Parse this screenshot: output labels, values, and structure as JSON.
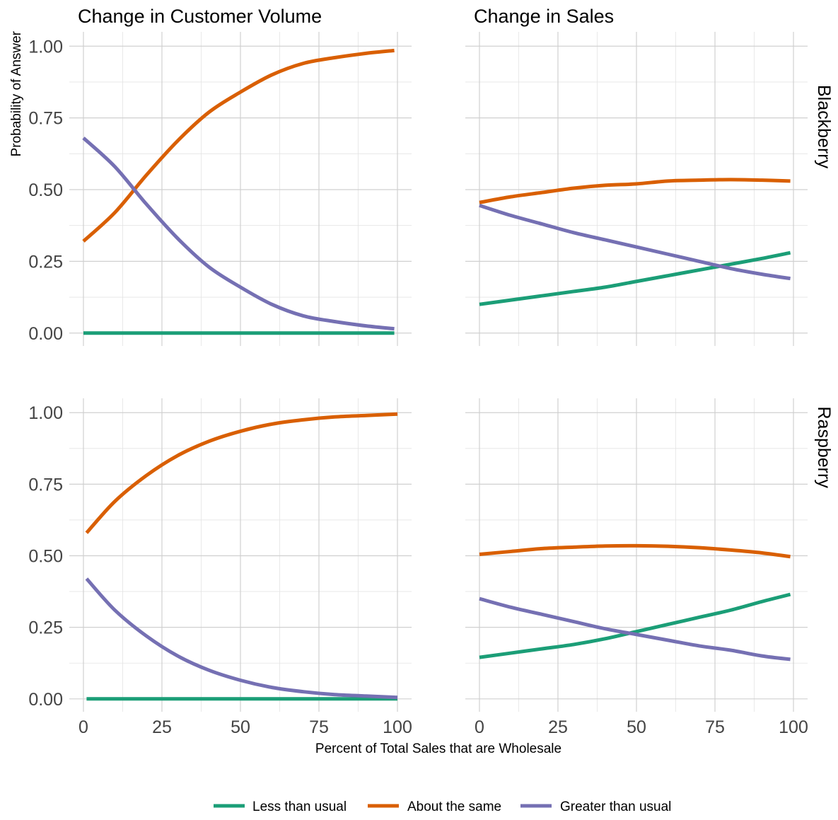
{
  "chart_data": {
    "type": "line",
    "facets": {
      "columns": [
        "Change in Customer Volume",
        "Change in Sales"
      ],
      "rows": [
        "Blackberry",
        "Raspberry"
      ]
    },
    "xlabel": "Percent of Total Sales that are Wholesale",
    "ylabel": "Probability of Answer",
    "xlim": [
      0,
      100
    ],
    "ylim": [
      0,
      1
    ],
    "x_ticks": [
      "0",
      "25",
      "50",
      "75",
      "100"
    ],
    "y_ticks": [
      "0.00",
      "0.25",
      "0.50",
      "0.75",
      "1.00"
    ],
    "grid": true,
    "legend_position": "bottom",
    "legend": [
      {
        "name": "Less than usual",
        "color": "#1b9e77"
      },
      {
        "name": "About the same",
        "color": "#d95f02"
      },
      {
        "name": "Greater than usual",
        "color": "#7570b3"
      }
    ],
    "panels": [
      {
        "row": "Blackberry",
        "column": "Change in Customer Volume",
        "x": [
          0,
          10,
          20,
          30,
          40,
          50,
          60,
          70,
          80,
          90,
          99
        ],
        "series": [
          {
            "name": "Less than usual",
            "values": [
              0,
              0,
              0,
              0,
              0,
              0,
              0,
              0,
              0,
              0,
              0
            ]
          },
          {
            "name": "About the same",
            "values": [
              0.32,
              0.42,
              0.55,
              0.67,
              0.77,
              0.84,
              0.9,
              0.94,
              0.96,
              0.975,
              0.985
            ]
          },
          {
            "name": "Greater than usual",
            "values": [
              0.68,
              0.58,
              0.45,
              0.33,
              0.23,
              0.16,
              0.1,
              0.06,
              0.04,
              0.025,
              0.015
            ]
          }
        ]
      },
      {
        "row": "Blackberry",
        "column": "Change in Sales",
        "x": [
          0,
          10,
          20,
          30,
          40,
          50,
          60,
          70,
          80,
          90,
          99
        ],
        "series": [
          {
            "name": "Less than usual",
            "values": [
              0.1,
              0.115,
              0.13,
              0.145,
              0.16,
              0.18,
              0.2,
              0.22,
              0.24,
              0.26,
              0.28
            ]
          },
          {
            "name": "About the same",
            "values": [
              0.455,
              0.475,
              0.49,
              0.505,
              0.515,
              0.52,
              0.53,
              0.533,
              0.535,
              0.533,
              0.53
            ]
          },
          {
            "name": "Greater than usual",
            "values": [
              0.445,
              0.41,
              0.38,
              0.35,
              0.325,
              0.3,
              0.275,
              0.25,
              0.225,
              0.205,
              0.19
            ]
          }
        ]
      },
      {
        "row": "Raspberry",
        "column": "Change in Customer Volume",
        "x": [
          1,
          10,
          20,
          30,
          40,
          50,
          60,
          70,
          80,
          90,
          100
        ],
        "series": [
          {
            "name": "Less than usual",
            "values": [
              0,
              0,
              0,
              0,
              0,
              0,
              0,
              0,
              0,
              0,
              0
            ]
          },
          {
            "name": "About the same",
            "values": [
              0.58,
              0.69,
              0.78,
              0.85,
              0.9,
              0.935,
              0.96,
              0.975,
              0.985,
              0.99,
              0.995
            ]
          },
          {
            "name": "Greater than usual",
            "values": [
              0.42,
              0.31,
              0.22,
              0.15,
              0.1,
              0.065,
              0.04,
              0.025,
              0.015,
              0.01,
              0.005
            ]
          }
        ]
      },
      {
        "row": "Raspberry",
        "column": "Change in Sales",
        "x": [
          0,
          10,
          20,
          30,
          40,
          50,
          60,
          70,
          80,
          90,
          99
        ],
        "series": [
          {
            "name": "Less than usual",
            "values": [
              0.145,
              0.16,
              0.175,
              0.19,
              0.21,
              0.235,
              0.26,
              0.285,
              0.31,
              0.34,
              0.365
            ]
          },
          {
            "name": "About the same",
            "values": [
              0.505,
              0.515,
              0.525,
              0.53,
              0.534,
              0.535,
              0.533,
              0.528,
              0.52,
              0.51,
              0.497
            ]
          },
          {
            "name": "Greater than usual",
            "values": [
              0.35,
              0.32,
              0.295,
              0.27,
              0.245,
              0.225,
              0.205,
              0.185,
              0.17,
              0.15,
              0.138
            ]
          }
        ]
      }
    ]
  }
}
